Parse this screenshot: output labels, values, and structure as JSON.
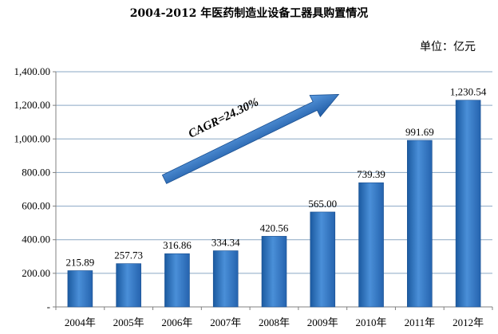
{
  "chart_data": {
    "type": "bar",
    "title": "2004-2012 年医药制造业设备工器具购置情况",
    "unit": "单位：亿元",
    "categories": [
      "2004年",
      "2005年",
      "2006年",
      "2007年",
      "2008年",
      "2009年",
      "2010年",
      "2011年",
      "2012年"
    ],
    "values": [
      215.89,
      257.73,
      316.86,
      334.34,
      420.56,
      565.0,
      739.39,
      991.69,
      1230.54
    ],
    "data_labels": [
      "215.89",
      "257.73",
      "316.86",
      "334.34",
      "420.56",
      "565.00",
      "739.39",
      "991.69",
      "1,230.54"
    ],
    "y_ticks": [
      0,
      200,
      400,
      600,
      800,
      1000,
      1200,
      1400
    ],
    "y_tick_labels": [
      "-",
      "200.00",
      "400.00",
      "600.00",
      "800.00",
      "1,000.00",
      "1,200.00",
      "1,400.00"
    ],
    "ylim": [
      0,
      1400
    ],
    "grid": true,
    "annotation": "CAGR=24.30%",
    "colors": {
      "bar_dark": "#1c5fa8",
      "bar_light": "#4a90d6",
      "arrow": "#2e6ab6",
      "grid": "#7f9fbf"
    }
  }
}
